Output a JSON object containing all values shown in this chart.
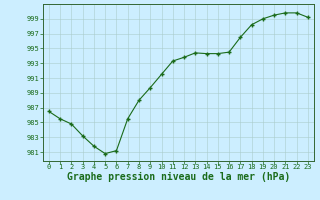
{
  "x": [
    0,
    1,
    2,
    3,
    4,
    5,
    6,
    7,
    8,
    9,
    10,
    11,
    12,
    13,
    14,
    15,
    16,
    17,
    18,
    19,
    20,
    21,
    22,
    23
  ],
  "y": [
    986.5,
    985.5,
    984.8,
    983.2,
    981.8,
    980.8,
    981.2,
    985.5,
    988.0,
    989.7,
    991.5,
    993.3,
    993.8,
    994.4,
    994.3,
    994.3,
    994.5,
    996.5,
    998.2,
    999.0,
    999.5,
    999.8,
    999.8,
    999.2
  ],
  "line_color": "#1a6b1a",
  "marker_color": "#1a6b1a",
  "bg_color": "#cceeff",
  "grid_color": "#aacccc",
  "border_color": "#336633",
  "xlabel": "Graphe pression niveau de la mer (hPa)",
  "xlabel_color": "#1a6b1a",
  "ylabel_ticks": [
    981,
    983,
    985,
    987,
    989,
    991,
    993,
    995,
    997,
    999
  ],
  "ylim": [
    979.8,
    1001.0
  ],
  "xlim": [
    -0.5,
    23.5
  ],
  "xticks": [
    0,
    1,
    2,
    3,
    4,
    5,
    6,
    7,
    8,
    9,
    10,
    11,
    12,
    13,
    14,
    15,
    16,
    17,
    18,
    19,
    20,
    21,
    22,
    23
  ],
  "tick_color": "#1a6b1a",
  "tick_fontsize": 5.0,
  "xlabel_fontsize": 7.0
}
